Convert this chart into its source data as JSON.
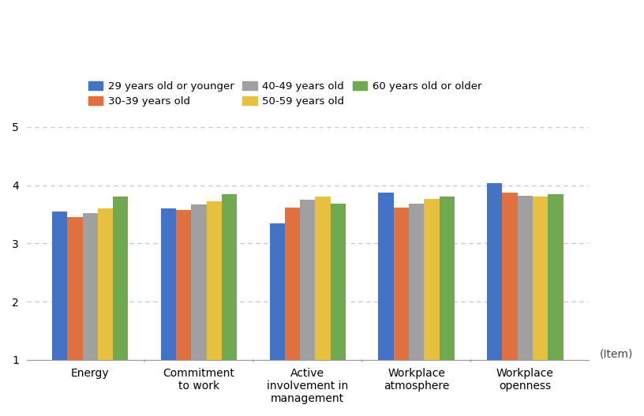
{
  "categories": [
    "Energy",
    "Commitment\nto work",
    "Active\ninvolvement in\nmanagement",
    "Workplace\natmosphere",
    "Workplace\nopenness"
  ],
  "groups": [
    "29 years old or younger",
    "30-39 years old",
    "40-49 years old",
    "50-59 years old",
    "60 years old or older"
  ],
  "values": [
    [
      3.55,
      3.6,
      3.35,
      3.87,
      4.03
    ],
    [
      3.45,
      3.57,
      3.62,
      3.62,
      3.87
    ],
    [
      3.52,
      3.67,
      3.75,
      3.68,
      3.82
    ],
    [
      3.6,
      3.73,
      3.8,
      3.77,
      3.8
    ],
    [
      3.8,
      3.84,
      3.68,
      3.8,
      3.85
    ]
  ],
  "colors": [
    "#4472c4",
    "#e07040",
    "#a0a0a0",
    "#e8c040",
    "#70aa50"
  ],
  "ylim": [
    1,
    5
  ],
  "yticks": [
    1,
    2,
    3,
    4,
    5
  ],
  "ylabel_item": "(Item)",
  "grid_color": "#b0c8d8",
  "background_color": "#ffffff",
  "legend_fontsize": 9.5,
  "axis_label_fontsize": 10,
  "tick_fontsize": 10,
  "bar_width": 0.14,
  "bar_bottom": 1.0
}
